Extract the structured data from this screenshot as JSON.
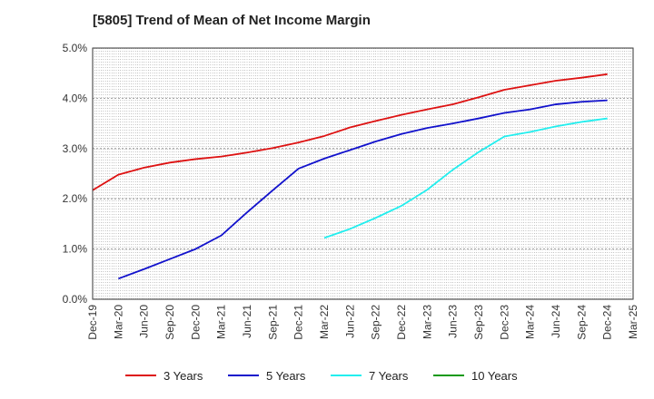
{
  "chart_data": {
    "type": "line",
    "title": "[5805]  Trend of Mean of Net Income Margin",
    "xlabel": "",
    "ylabel": "",
    "x_ticks": [
      "Dec-19",
      "Mar-20",
      "Jun-20",
      "Sep-20",
      "Dec-20",
      "Mar-21",
      "Jun-21",
      "Sep-21",
      "Dec-21",
      "Mar-22",
      "Jun-22",
      "Sep-22",
      "Dec-22",
      "Mar-23",
      "Jun-23",
      "Sep-23",
      "Dec-23",
      "Mar-24",
      "Jun-24",
      "Sep-24",
      "Dec-24",
      "Mar-25"
    ],
    "y_ticks": [
      "0.0%",
      "1.0%",
      "2.0%",
      "3.0%",
      "4.0%",
      "5.0%"
    ],
    "ylim": [
      0,
      5
    ],
    "grid": true,
    "legend_position": "bottom",
    "series": [
      {
        "name": "3 Years",
        "color": "#dd1111",
        "points": [
          [
            "Dec-19",
            2.17
          ],
          [
            "Mar-20",
            2.48
          ],
          [
            "Jun-20",
            2.62
          ],
          [
            "Sep-20",
            2.72
          ],
          [
            "Dec-20",
            2.79
          ],
          [
            "Mar-21",
            2.84
          ],
          [
            "Jun-21",
            2.92
          ],
          [
            "Sep-21",
            3.01
          ],
          [
            "Dec-21",
            3.12
          ],
          [
            "Mar-22",
            3.25
          ],
          [
            "Jun-22",
            3.42
          ],
          [
            "Sep-22",
            3.55
          ],
          [
            "Dec-22",
            3.67
          ],
          [
            "Mar-23",
            3.78
          ],
          [
            "Jun-23",
            3.88
          ],
          [
            "Sep-23",
            4.02
          ],
          [
            "Dec-23",
            4.17
          ],
          [
            "Mar-24",
            4.26
          ],
          [
            "Jun-24",
            4.35
          ],
          [
            "Sep-24",
            4.41
          ],
          [
            "Dec-24",
            4.48
          ]
        ]
      },
      {
        "name": "5 Years",
        "color": "#1111cc",
        "points": [
          [
            "Mar-20",
            0.41
          ],
          [
            "Jun-20",
            0.6
          ],
          [
            "Sep-20",
            0.8
          ],
          [
            "Dec-20",
            1.0
          ],
          [
            "Mar-21",
            1.27
          ],
          [
            "Jun-21",
            1.73
          ],
          [
            "Sep-21",
            2.17
          ],
          [
            "Dec-21",
            2.6
          ],
          [
            "Mar-22",
            2.8
          ],
          [
            "Jun-22",
            2.97
          ],
          [
            "Sep-22",
            3.14
          ],
          [
            "Dec-22",
            3.29
          ],
          [
            "Mar-23",
            3.41
          ],
          [
            "Jun-23",
            3.5
          ],
          [
            "Sep-23",
            3.6
          ],
          [
            "Dec-23",
            3.71
          ],
          [
            "Mar-24",
            3.78
          ],
          [
            "Jun-24",
            3.88
          ],
          [
            "Sep-24",
            3.93
          ],
          [
            "Dec-24",
            3.96
          ]
        ]
      },
      {
        "name": "7 Years",
        "color": "#22eeee",
        "points": [
          [
            "Mar-22",
            1.22
          ],
          [
            "Jun-22",
            1.4
          ],
          [
            "Sep-22",
            1.62
          ],
          [
            "Dec-22",
            1.86
          ],
          [
            "Mar-23",
            2.18
          ],
          [
            "Jun-23",
            2.58
          ],
          [
            "Sep-23",
            2.93
          ],
          [
            "Dec-23",
            3.24
          ],
          [
            "Mar-24",
            3.33
          ],
          [
            "Jun-24",
            3.44
          ],
          [
            "Sep-24",
            3.53
          ],
          [
            "Dec-24",
            3.6
          ]
        ]
      },
      {
        "name": "10 Years",
        "color": "#119911",
        "points": []
      }
    ]
  }
}
